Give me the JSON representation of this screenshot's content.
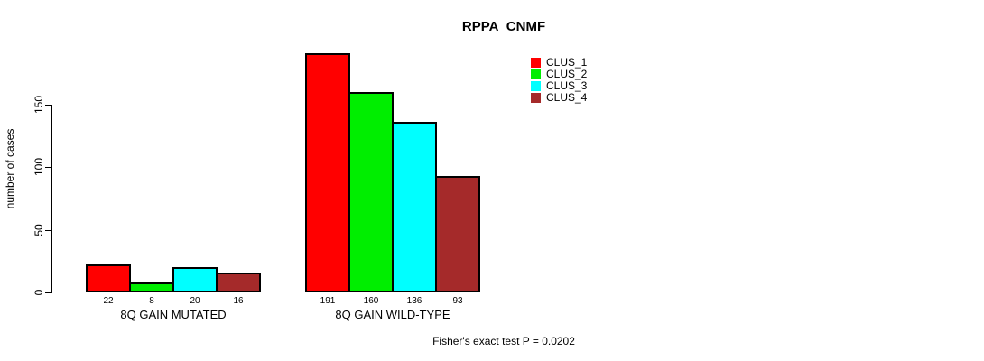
{
  "chart_data": {
    "type": "bar",
    "title": "RPPA_CNMF",
    "ylabel": "number of cases",
    "xlabel": "",
    "categories": [
      "8Q GAIN MUTATED",
      "8Q GAIN WILD-TYPE"
    ],
    "series": [
      {
        "name": "CLUS_1",
        "color": "#FF0000",
        "values": [
          22,
          191
        ]
      },
      {
        "name": "CLUS_2",
        "color": "#00EE00",
        "values": [
          8,
          160
        ]
      },
      {
        "name": "CLUS_3",
        "color": "#00FFFF",
        "values": [
          20,
          136
        ]
      },
      {
        "name": "CLUS_4",
        "color": "#A52A2A",
        "values": [
          16,
          93
        ]
      }
    ],
    "yticks": [
      0,
      50,
      100,
      150
    ],
    "ylim": [
      0,
      200
    ],
    "bar_value_labels": [
      [
        "22",
        "8",
        "20",
        "16"
      ],
      [
        "191",
        "160",
        "136",
        "93"
      ]
    ],
    "legend_position": "top-right",
    "grid": false,
    "annotation": "Fisher's exact test P = 0.0202",
    "axis_color": "#000000",
    "bar_border_color": "#000000"
  }
}
